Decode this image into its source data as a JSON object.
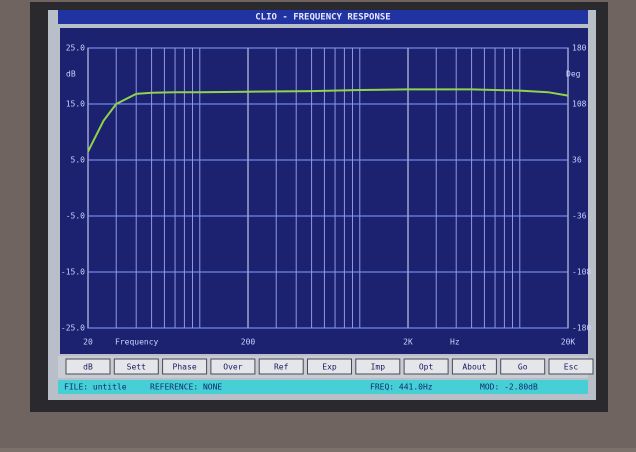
{
  "window": {
    "title": "CLIO - FREQUENCY RESPONSE"
  },
  "plot": {
    "y_unit": "dB",
    "y2_unit": "Deg",
    "x_label": "Frequency",
    "x_unit": "Hz",
    "xlim": [
      20,
      20000
    ],
    "xscale": "log",
    "xticks": [
      {
        "value": 20,
        "label": "20"
      },
      {
        "value": 200,
        "label": "200"
      },
      {
        "value": 2000,
        "label": "2K"
      },
      {
        "value": 20000,
        "label": "20K"
      }
    ],
    "x_grid": [
      30,
      40,
      50,
      60,
      70,
      80,
      90,
      100,
      300,
      400,
      500,
      600,
      700,
      800,
      900,
      1000,
      3000,
      4000,
      5000,
      6000,
      7000,
      8000,
      9000,
      10000
    ],
    "ylim": [
      -25,
      25
    ],
    "yticks": [
      {
        "value": 25,
        "label": "25.0"
      },
      {
        "value": 15,
        "label": "15.0"
      },
      {
        "value": 5,
        "label": "5.0"
      },
      {
        "value": -5,
        "label": "-5.0"
      },
      {
        "value": -15,
        "label": "-15.0"
      },
      {
        "value": -25,
        "label": "-25.0"
      }
    ],
    "y2lim": [
      -180,
      180
    ],
    "y2ticks": [
      180,
      108,
      36,
      -36,
      -108,
      -180
    ],
    "curve": {
      "color": "#8fd44a",
      "x": [
        20,
        25,
        30,
        40,
        50,
        70,
        100,
        200,
        500,
        1000,
        2000,
        5000,
        10000,
        15000,
        20000
      ],
      "values": [
        6.5,
        12,
        15,
        16.8,
        17,
        17.1,
        17.1,
        17.2,
        17.3,
        17.5,
        17.6,
        17.6,
        17.4,
        17.1,
        16.5
      ]
    }
  },
  "buttons": [
    "dB",
    "Sett",
    "Phase",
    "Over",
    "Ref",
    "Exp",
    "Imp",
    "Opt",
    "About",
    "Go",
    "Esc"
  ],
  "status": [
    "FILE: untitle",
    "REFERENCE: NONE",
    "FREQ: 441.0Hz",
    "MOD: -2.80dB"
  ]
}
